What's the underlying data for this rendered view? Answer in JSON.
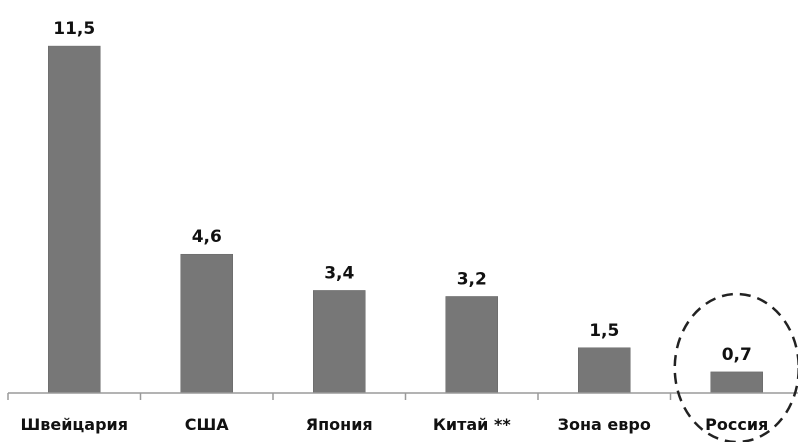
{
  "chart_data": {
    "type": "bar",
    "categories": [
      "Швейцария",
      "США",
      "Япония",
      "Китай **",
      "Зона евро",
      "Россия"
    ],
    "values": [
      11.5,
      4.6,
      3.4,
      3.2,
      1.5,
      0.7
    ],
    "value_labels": [
      "11,5",
      "4,6",
      "3,4",
      "3,2",
      "1,5",
      "0,7"
    ],
    "ylim": [
      0,
      12
    ],
    "grid": false,
    "legend": "none",
    "bar_color": "#777777",
    "axis_color": "#9a9a9a",
    "highlight": {
      "category": "Россия",
      "shape": "dashed-ellipse",
      "color": "#222222"
    }
  }
}
